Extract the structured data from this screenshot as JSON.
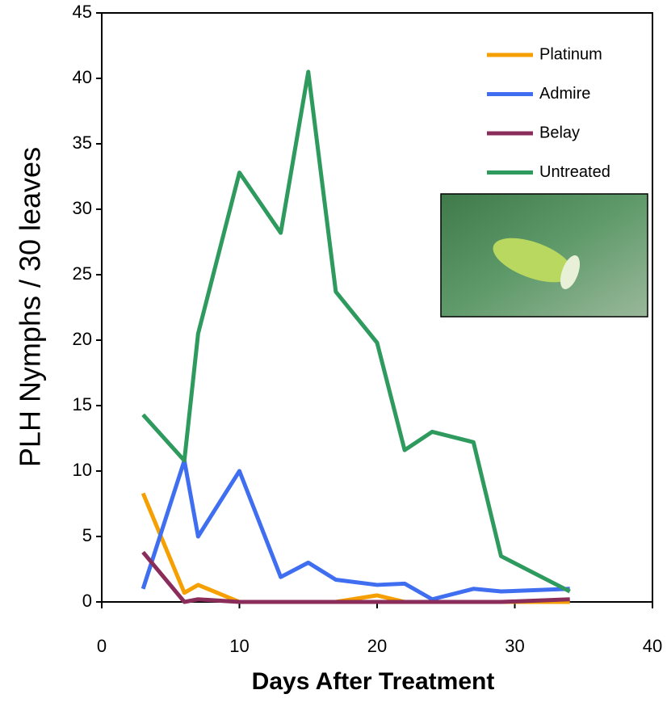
{
  "chart_data": {
    "type": "line",
    "x": [
      3,
      6,
      7,
      10,
      13,
      15,
      17,
      20,
      22,
      24,
      27,
      29,
      34
    ],
    "series": [
      {
        "name": "Platinum",
        "color": "#f5a000",
        "values": [
          8.3,
          0.7,
          1.3,
          0,
          0,
          0,
          0,
          0.5,
          0,
          0,
          0,
          0,
          0
        ]
      },
      {
        "name": "Admire",
        "color": "#3f6ef0",
        "values": [
          1.0,
          10.8,
          5.0,
          10.0,
          1.9,
          3.0,
          1.7,
          1.3,
          1.4,
          0.2,
          1.0,
          0.8,
          1.0
        ]
      },
      {
        "name": "Belay",
        "color": "#8b2d5a",
        "values": [
          3.8,
          0,
          0.2,
          0,
          0,
          0,
          0,
          0,
          0,
          0,
          0,
          0,
          0.2
        ]
      },
      {
        "name": "Untreated",
        "color": "#2e9a5e",
        "values": [
          14.3,
          10.8,
          20.5,
          32.8,
          28.2,
          40.5,
          23.7,
          19.8,
          11.6,
          13.0,
          12.2,
          3.5,
          0.8
        ]
      }
    ],
    "x_label": "Days After Treatment",
    "y_label": "PLH Nymphs / 30 leaves",
    "xlim": [
      0,
      40
    ],
    "xticks": [
      0,
      10,
      20,
      30,
      40
    ],
    "ylim": [
      0,
      45
    ],
    "yticks": [
      0,
      5,
      10,
      15,
      20,
      25,
      30,
      35,
      40,
      45
    ],
    "legend": "upper right"
  }
}
